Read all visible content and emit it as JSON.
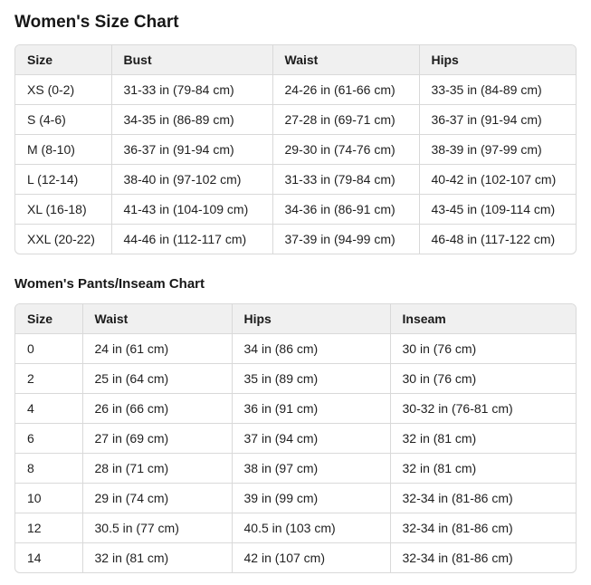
{
  "colors": {
    "header_bg": "#f0f0f0",
    "border": "#d9d9d9",
    "text": "#1b1b1b",
    "page_bg": "#ffffff"
  },
  "size_chart": {
    "title": "Women's Size Chart",
    "columns": [
      "Size",
      "Bust",
      "Waist",
      "Hips"
    ],
    "rows": [
      [
        "XS (0-2)",
        "31-33 in (79-84 cm)",
        "24-26 in (61-66 cm)",
        "33-35 in (84-89 cm)"
      ],
      [
        "S (4-6)",
        "34-35 in (86-89 cm)",
        "27-28 in (69-71 cm)",
        "36-37 in (91-94 cm)"
      ],
      [
        "M (8-10)",
        "36-37 in (91-94 cm)",
        "29-30 in (74-76 cm)",
        "38-39 in (97-99 cm)"
      ],
      [
        "L (12-14)",
        "38-40 in (97-102 cm)",
        "31-33 in (79-84 cm)",
        "40-42 in (102-107 cm)"
      ],
      [
        "XL (16-18)",
        "41-43 in (104-109 cm)",
        "34-36 in (86-91 cm)",
        "43-45 in (109-114 cm)"
      ],
      [
        "XXL (20-22)",
        "44-46 in (112-117 cm)",
        "37-39 in (94-99 cm)",
        "46-48 in (117-122 cm)"
      ]
    ]
  },
  "pants_chart": {
    "title": "Women's Pants/Inseam Chart",
    "columns": [
      "Size",
      "Waist",
      "Hips",
      "Inseam"
    ],
    "rows": [
      [
        "0",
        "24 in (61 cm)",
        "34 in (86 cm)",
        "30 in (76 cm)"
      ],
      [
        "2",
        "25 in (64 cm)",
        "35 in (89 cm)",
        "30 in (76 cm)"
      ],
      [
        "4",
        "26 in (66 cm)",
        "36 in (91 cm)",
        "30-32 in (76-81 cm)"
      ],
      [
        "6",
        "27 in (69 cm)",
        "37 in (94 cm)",
        "32 in (81 cm)"
      ],
      [
        "8",
        "28 in (71 cm)",
        "38 in (97 cm)",
        "32 in (81 cm)"
      ],
      [
        "10",
        "29 in (74 cm)",
        "39 in (99 cm)",
        "32-34 in (81-86 cm)"
      ],
      [
        "12",
        "30.5 in (77 cm)",
        "40.5 in (103 cm)",
        "32-34 in (81-86 cm)"
      ],
      [
        "14",
        "32 in (81 cm)",
        "42 in (107 cm)",
        "32-34 in (81-86 cm)"
      ]
    ]
  }
}
